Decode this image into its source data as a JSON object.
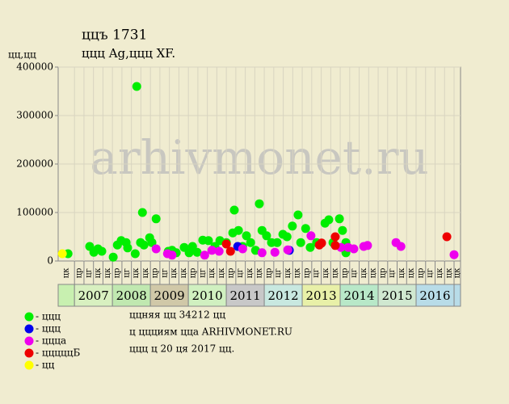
{
  "chart_data": {
    "type": "scatter",
    "title": "ццъ 1731",
    "subtitle": "ццц Ag,ццц XF.",
    "y_label": "цц,цц",
    "watermark": "arhivmonet.ru",
    "ylim": [
      0,
      400000
    ],
    "yticks": [
      0,
      100000,
      200000,
      300000,
      400000
    ],
    "xlim": [
      2006.57,
      2017.17
    ],
    "xticks": [
      2007,
      2008,
      2009,
      2010,
      2011,
      2012,
      2013,
      2014,
      2015,
      2016
    ],
    "xtick_colors": [
      "#d8f0c0",
      "#c0e8b0",
      "#d0c8a8",
      "#d0f0c0",
      "#c8c8c8",
      "#c8e8e0",
      "#e8f0a8",
      "#b8e8c8",
      "#d0e8d0",
      "#b8dce8"
    ],
    "period_labels": [
      "цк",
      "цр",
      "цг",
      "цк",
      "цк",
      "цр",
      "цг",
      "цк",
      "цк",
      "цр",
      "цг",
      "цк",
      "цк",
      "цр",
      "цг",
      "цк",
      "цк",
      "цр",
      "цг",
      "цк",
      "цк",
      "цр",
      "цг",
      "цк",
      "цк",
      "цр",
      "цг",
      "цк",
      "цк",
      "цр",
      "цг",
      "цк",
      "цк",
      "цр",
      "цг",
      "цк",
      "цк",
      "цр",
      "цг",
      "цк",
      "цк",
      "цк"
    ],
    "grid": true,
    "series": [
      {
        "name": "- ццц",
        "color": "#00ee00",
        "x": [
          2006.83,
          2007.4,
          2007.51,
          2007.62,
          2007.72,
          2008.02,
          2008.13,
          2008.23,
          2008.36,
          2008.4,
          2008.64,
          2008.6,
          2008.74,
          2008.79,
          2008.83,
          2008.98,
          2009.04,
          2009.15,
          2009.47,
          2009.57,
          2009.68,
          2009.89,
          2010.02,
          2010.11,
          2010.23,
          2010.38,
          2010.53,
          2010.7,
          2010.83,
          2011.0,
          2011.21,
          2011.17,
          2011.32,
          2011.43,
          2011.53,
          2011.64,
          2011.77,
          2011.87,
          2011.94,
          2012.06,
          2012.19,
          2012.34,
          2012.49,
          2012.6,
          2012.74,
          2012.89,
          2012.96,
          2013.09,
          2013.21,
          2013.38,
          2013.6,
          2013.7,
          2013.81,
          2013.98,
          2014.06,
          2014.15,
          2014.15
        ],
        "values": [
          15000,
          30000,
          18000,
          25000,
          20000,
          8000,
          33000,
          42000,
          38000,
          27000,
          360000,
          15000,
          38000,
          100000,
          33000,
          48000,
          38000,
          87000,
          20000,
          22000,
          17000,
          28000,
          17000,
          30000,
          18000,
          43000,
          42000,
          30000,
          42000,
          38000,
          105000,
          58000,
          63000,
          30000,
          52000,
          38000,
          22000,
          118000,
          63000,
          52000,
          38000,
          38000,
          55000,
          50000,
          72000,
          95000,
          38000,
          67000,
          28000,
          38000,
          78000,
          85000,
          38000,
          87000,
          63000,
          38000,
          17000
        ]
      },
      {
        "name": "- ццц",
        "color": "#0000ee",
        "x": [
          2011.3,
          2012.66
        ],
        "values": [
          30000,
          22000
        ]
      },
      {
        "name": "- ццца",
        "color": "#ee00ee",
        "x": [
          2009.15,
          2009.45,
          2009.57,
          2010.43,
          2010.62,
          2010.81,
          2011.43,
          2011.94,
          2012.28,
          2012.62,
          2013.23,
          2014.02,
          2014.21,
          2014.36,
          2014.62,
          2014.72,
          2015.47,
          2015.6,
          2017.0
        ],
        "values": [
          25000,
          15000,
          12000,
          12000,
          22000,
          20000,
          25000,
          17000,
          18000,
          23000,
          52000,
          28000,
          28000,
          25000,
          30000,
          32000,
          38000,
          30000,
          13000
        ]
      },
      {
        "name": "- цццццБ",
        "color": "#ee0000",
        "x": [
          2011.0,
          2011.11,
          2013.45,
          2013.51,
          2013.87,
          2013.87,
          2016.81
        ],
        "values": [
          35000,
          20000,
          33000,
          37000,
          50000,
          32000,
          50000
        ]
      },
      {
        "name": "- цц",
        "color": "#ffff00",
        "x": [
          2006.68
        ],
        "values": [
          15000
        ]
      }
    ],
    "notes": [
      "ццняя цц 34212 цц",
      "ц ццциям цца ARHIVMONET.RU",
      "ццц ц 20 ця 2017 цц."
    ]
  }
}
